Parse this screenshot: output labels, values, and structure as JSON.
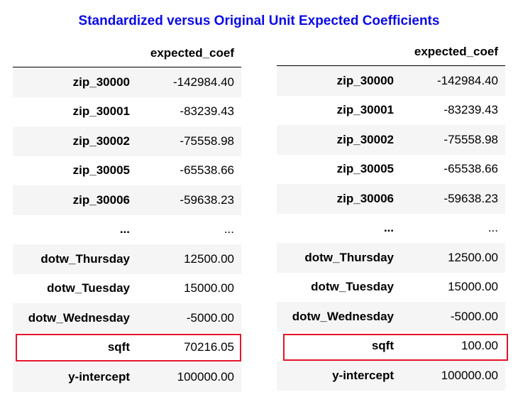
{
  "title": "Standardized versus Original Unit Expected Coefficients",
  "colors": {
    "title": "#0a0ae6",
    "highlight": "#e3152b",
    "stripe": "#f5f5f5"
  },
  "tables": [
    {
      "header": [
        "",
        "expected_coef"
      ],
      "rows": [
        [
          "zip_30000",
          "-142984.40"
        ],
        [
          "zip_30001",
          "-83239.43"
        ],
        [
          "zip_30002",
          "-75558.98"
        ],
        [
          "zip_30005",
          "-65538.66"
        ],
        [
          "zip_30006",
          "-59638.23"
        ],
        [
          "...",
          "..."
        ],
        [
          "dotw_Thursday",
          "12500.00"
        ],
        [
          "dotw_Tuesday",
          "15000.00"
        ],
        [
          "dotw_Wednesday",
          "-5000.00"
        ],
        [
          "sqft",
          "70216.05"
        ],
        [
          "y-intercept",
          "100000.00"
        ]
      ],
      "highlighted_row": "sqft"
    },
    {
      "header": [
        "",
        "expected_coef"
      ],
      "rows": [
        [
          "zip_30000",
          "-142984.40"
        ],
        [
          "zip_30001",
          "-83239.43"
        ],
        [
          "zip_30002",
          "-75558.98"
        ],
        [
          "zip_30005",
          "-65538.66"
        ],
        [
          "zip_30006",
          "-59638.23"
        ],
        [
          "...",
          "..."
        ],
        [
          "dotw_Thursday",
          "12500.00"
        ],
        [
          "dotw_Tuesday",
          "15000.00"
        ],
        [
          "dotw_Wednesday",
          "-5000.00"
        ],
        [
          "sqft",
          "100.00"
        ],
        [
          "y-intercept",
          "100000.00"
        ]
      ],
      "highlighted_row": "sqft"
    }
  ]
}
